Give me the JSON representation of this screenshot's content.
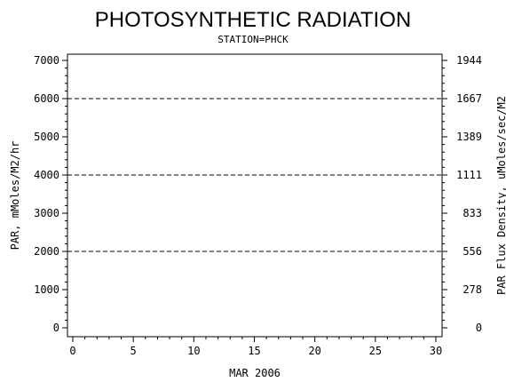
{
  "chart_data": {
    "type": "line",
    "title": "PHOTOSYNTHETIC RADIATION",
    "subtitle": "STATION=PHCK",
    "xlabel": "MAR 2006",
    "ylabel": "PAR, mMoles/M2/hr",
    "ylabel_right": "PAR Flux Density, uMoles/sec/M2",
    "xlim": [
      0,
      30
    ],
    "ylim": [
      0,
      7000
    ],
    "x_ticks": [
      "0",
      "5",
      "10",
      "15",
      "20",
      "25",
      "30"
    ],
    "y_ticks": [
      "0",
      "1000",
      "2000",
      "3000",
      "4000",
      "5000",
      "6000",
      "7000"
    ],
    "y_ticks_right": [
      "0",
      "278",
      "556",
      "833",
      "1111",
      "1389",
      "1667",
      "1944"
    ],
    "gridlines_y": [
      2000,
      4000,
      6000
    ],
    "grid_style": "dashed",
    "series": []
  }
}
